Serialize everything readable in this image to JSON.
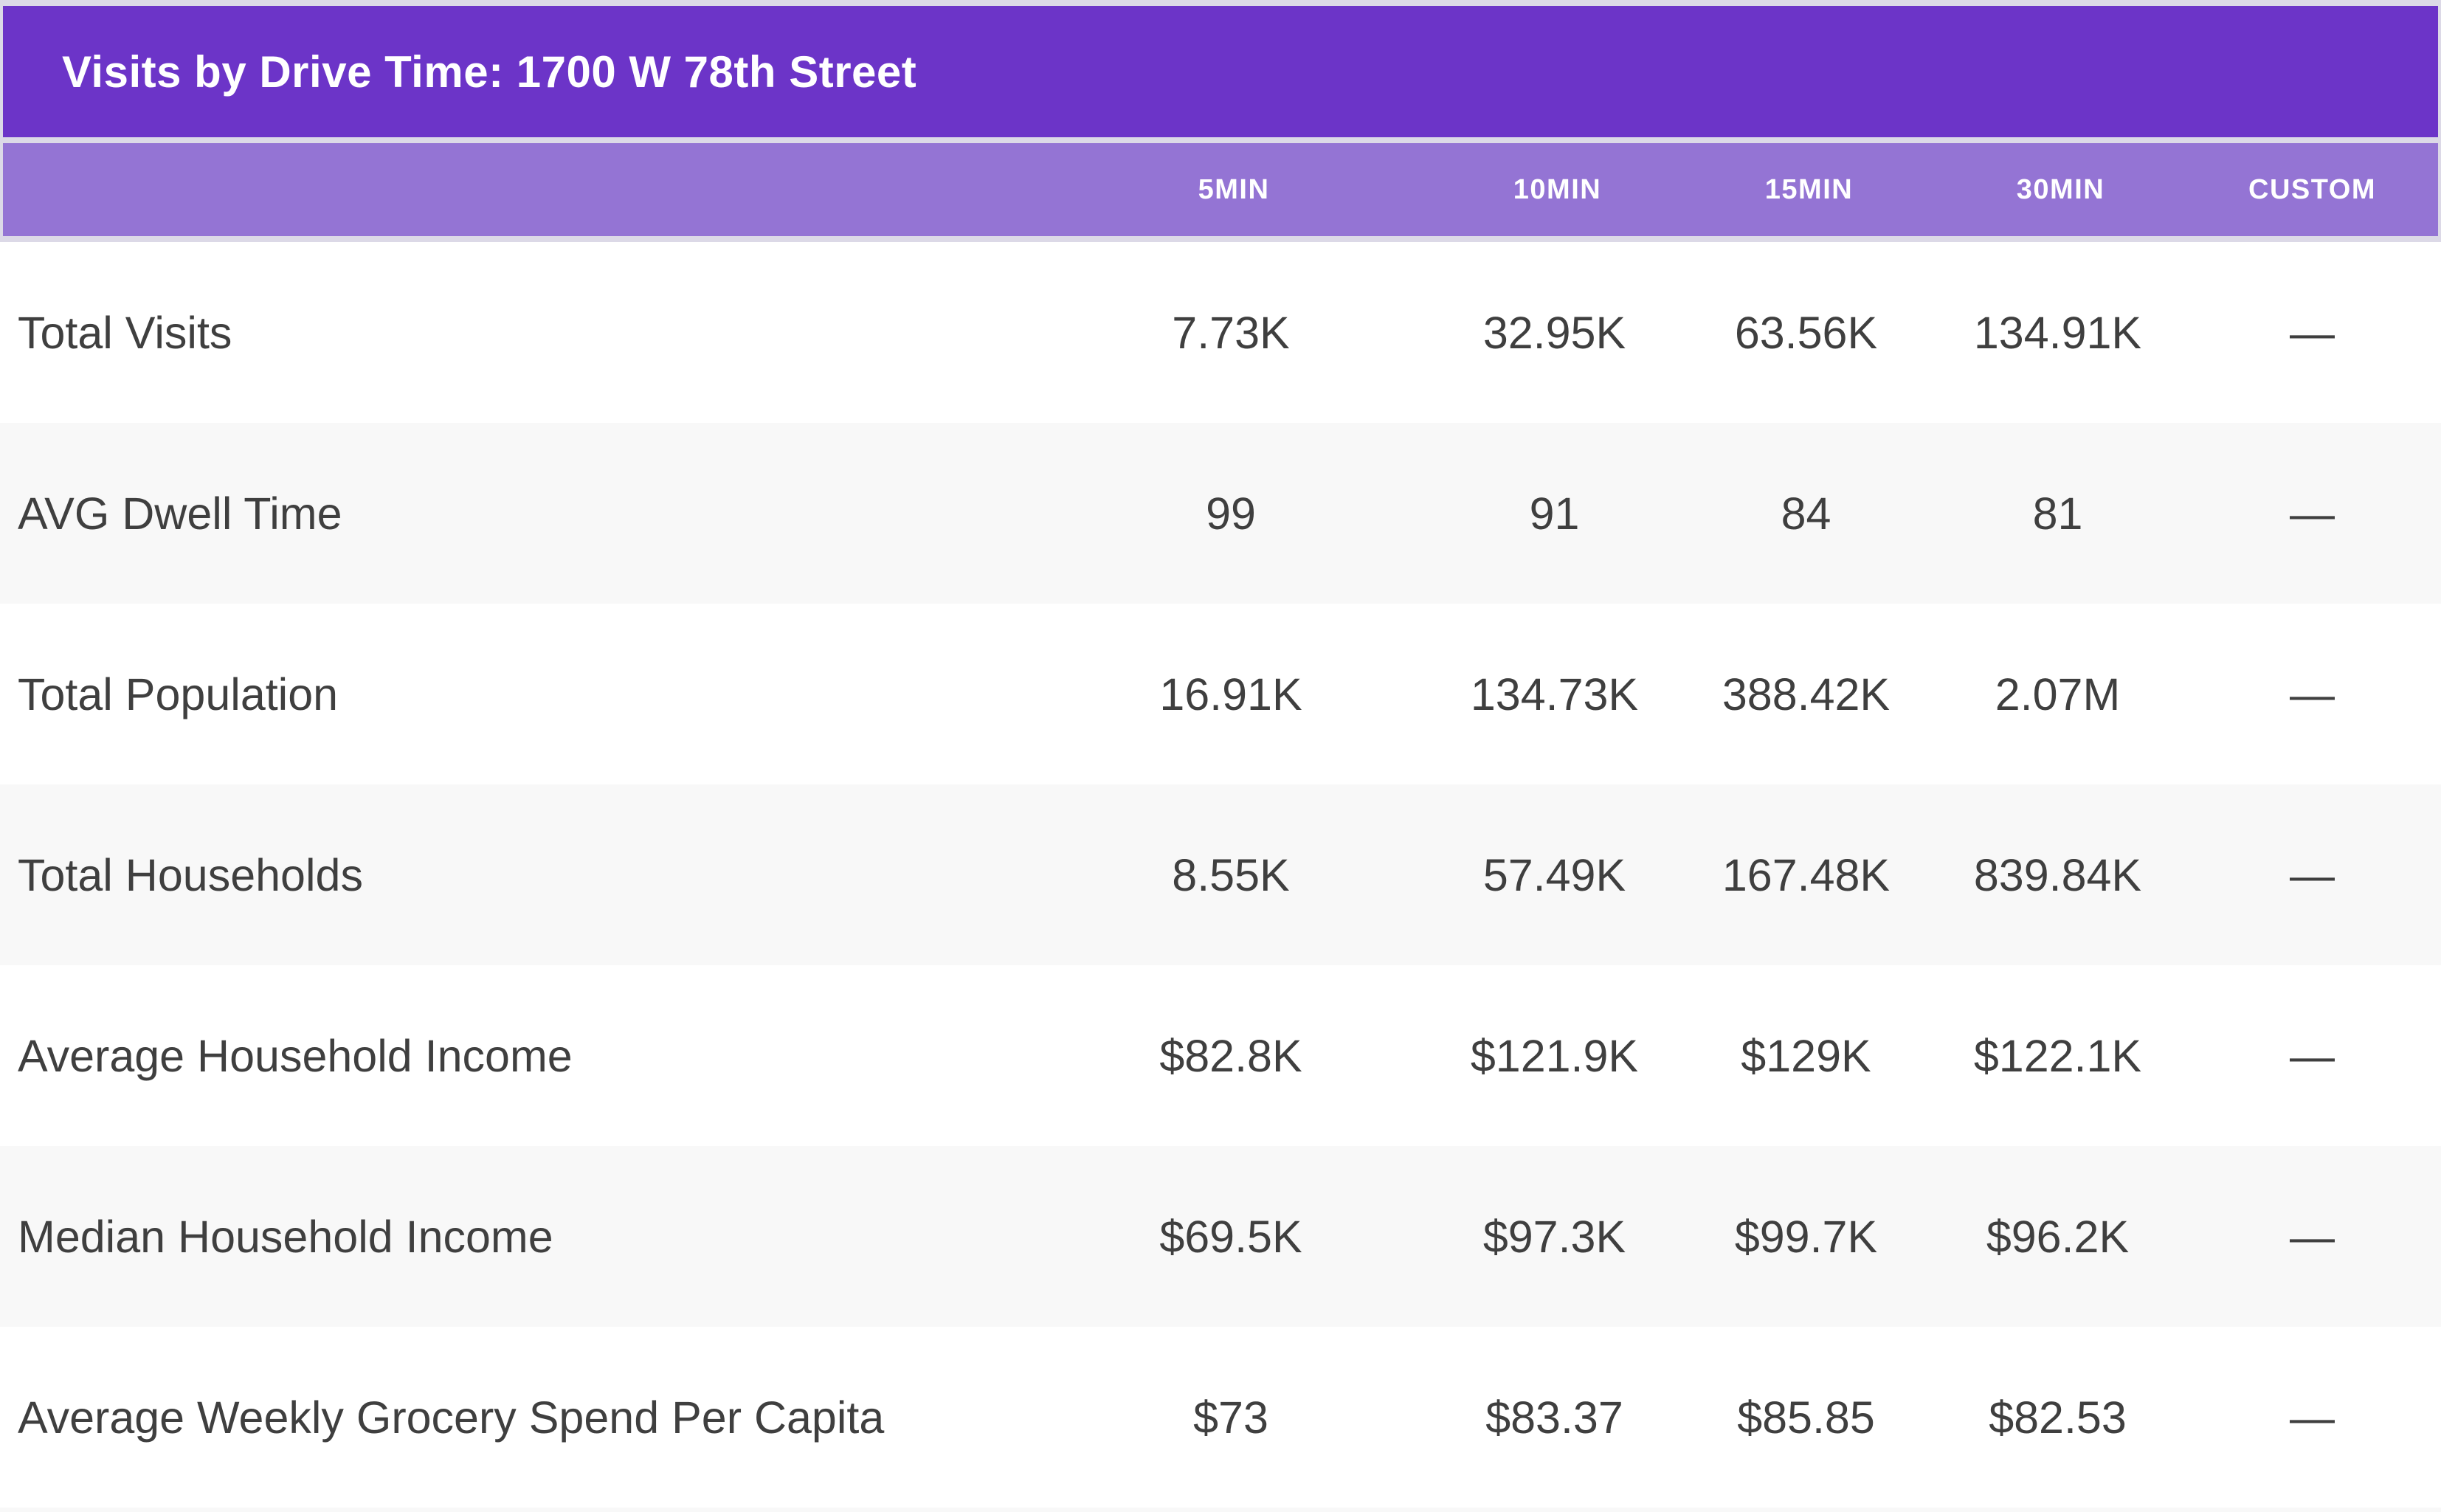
{
  "widget": {
    "title": "Visits by Drive Time: 1700 W 78th Street"
  },
  "table": {
    "columns": [
      "5MIN",
      "10MIN",
      "15MIN",
      "30MIN",
      "CUSTOM"
    ],
    "rows": [
      {
        "label": "Total Visits",
        "values": [
          "7.73K",
          "32.95K",
          "63.56K",
          "134.91K",
          "—"
        ]
      },
      {
        "label": "AVG Dwell Time",
        "values": [
          "99",
          "91",
          "84",
          "81",
          "—"
        ]
      },
      {
        "label": "Total Population",
        "values": [
          "16.91K",
          "134.73K",
          "388.42K",
          "2.07M",
          "—"
        ]
      },
      {
        "label": "Total Households",
        "values": [
          "8.55K",
          "57.49K",
          "167.48K",
          "839.84K",
          "—"
        ]
      },
      {
        "label": "Average Household Income",
        "values": [
          "$82.8K",
          "$121.9K",
          "$129K",
          "$122.1K",
          "—"
        ]
      },
      {
        "label": "Median Household Income",
        "values": [
          "$69.5K",
          "$97.3K",
          "$99.7K",
          "$96.2K",
          "—"
        ]
      },
      {
        "label": "Average Weekly Grocery Spend Per Capita",
        "values": [
          "$73",
          "$83.37",
          "$85.85",
          "$82.53",
          "—"
        ]
      }
    ]
  },
  "colors": {
    "title_bar": "#6c34c8",
    "column_header_bar": "#9474d4",
    "chrome_background": "#dcd9e7",
    "alt_row_background": "#f8f8f8",
    "row_text": "#3f3f3f",
    "header_text": "#ffffff"
  }
}
